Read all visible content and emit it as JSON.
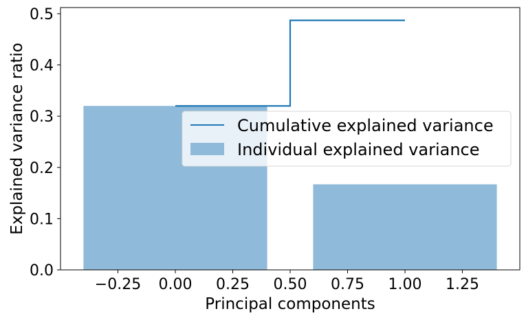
{
  "chart_data": {
    "type": "bar",
    "title": "",
    "xlabel": "Principal components",
    "ylabel": "Explained variance ratio",
    "xlim": [
      -0.5,
      1.5
    ],
    "ylim": [
      0.0,
      0.512
    ],
    "x_ticks": [
      -0.25,
      0.0,
      0.25,
      0.5,
      0.75,
      1.0,
      1.25
    ],
    "x_tick_labels": [
      "−0.25",
      "0.00",
      "0.25",
      "0.50",
      "0.75",
      "1.00",
      "1.25"
    ],
    "y_ticks": [
      0.0,
      0.1,
      0.2,
      0.3,
      0.4,
      0.5
    ],
    "y_tick_labels": [
      "0.0",
      "0.1",
      "0.2",
      "0.3",
      "0.4",
      "0.5"
    ],
    "grid": false,
    "legend_position": "center-right",
    "series": [
      {
        "name": "Individual explained variance",
        "kind": "bar",
        "x": [
          0,
          1
        ],
        "values": [
          0.32,
          0.167
        ],
        "bar_width": 0.8,
        "color": "#8fbad9"
      },
      {
        "name": "Cumulative explained variance",
        "kind": "step",
        "step_where": "mid",
        "x": [
          0,
          1
        ],
        "values": [
          0.32,
          0.487
        ],
        "color": "#1f77b4"
      }
    ]
  }
}
